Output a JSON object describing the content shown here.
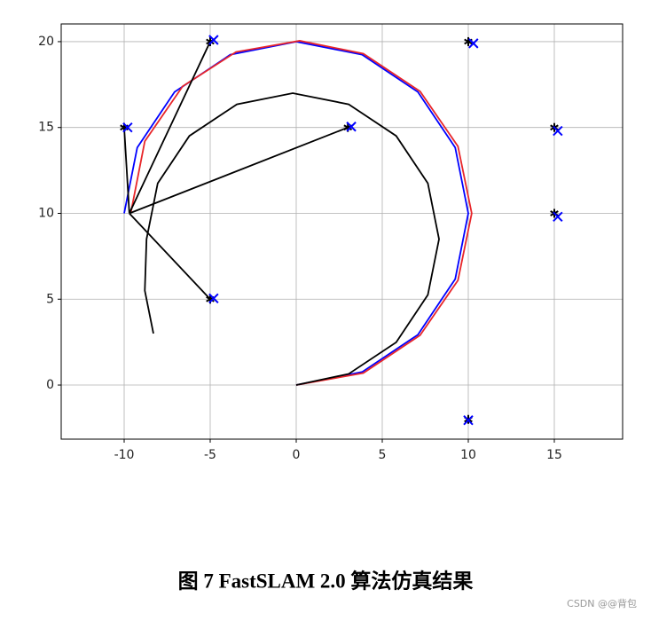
{
  "chart_data": {
    "type": "line",
    "caption": "图 7   FastSLAM 2.0 算法仿真结果",
    "watermark": "CSDN @@背包",
    "xlim": [
      -13.66,
      18.97
    ],
    "ylim": [
      -3.15,
      21.03
    ],
    "xticks": [
      -10,
      -5,
      0,
      5,
      10,
      15
    ],
    "yticks": [
      0,
      5,
      10,
      15,
      20
    ],
    "grid": true,
    "series": [
      {
        "color": "#0000ff",
        "marker": "line",
        "x": [
          0,
          3.83,
          7.07,
          9.24,
          10,
          9.24,
          7.07,
          3.83,
          0,
          -3.83,
          -7.07,
          -9.24,
          -10
        ],
        "y": [
          0,
          0.76,
          2.93,
          6.17,
          10,
          13.83,
          17.07,
          19.24,
          20,
          19.24,
          17.07,
          13.83,
          10
        ]
      },
      {
        "color": "#e8262a",
        "marker": "line",
        "x": [
          0,
          3.9,
          7.2,
          9.4,
          10.2,
          9.4,
          7.2,
          3.9,
          0.2,
          -3.5,
          -6.6,
          -8.8,
          -9.6
        ],
        "y": [
          0,
          0.7,
          2.9,
          6.1,
          10,
          13.9,
          17.1,
          19.3,
          20.05,
          19.4,
          17.4,
          14.2,
          10.1
        ]
      },
      {
        "color": "#000000",
        "marker": "line",
        "x": [
          0,
          3.05,
          5.81,
          7.65,
          8.3,
          7.65,
          5.81,
          3.05,
          -0.2,
          -3.45,
          -6.21,
          -8.05,
          -8.7,
          -8.8,
          -8.3
        ],
        "y": [
          0,
          0.65,
          2.49,
          5.25,
          8.5,
          11.75,
          14.51,
          16.35,
          17,
          16.35,
          14.51,
          11.75,
          8.5,
          5.5,
          3
        ]
      },
      {
        "color": "#000000",
        "marker": "line",
        "x": [
          -9.7,
          -10,
          null,
          -9.7,
          -5,
          null,
          -9.7,
          3,
          null,
          -9.7,
          -5
        ],
        "y": [
          10,
          15,
          null,
          10,
          20,
          null,
          10,
          15,
          null,
          10,
          5
        ]
      },
      {
        "color": "#000000",
        "marker": "star",
        "x": [
          -10,
          -5,
          10,
          15,
          15,
          -5,
          3,
          10
        ],
        "y": [
          15,
          20,
          20,
          15,
          10,
          5,
          15,
          -2
        ]
      },
      {
        "color": "#0000ff",
        "marker": "x",
        "x": [
          -9.8,
          -4.8,
          10.3,
          15.2,
          15.2,
          -4.8,
          3.2,
          10
        ],
        "y": [
          15,
          20.1,
          19.9,
          14.8,
          9.8,
          5.05,
          15.05,
          -2.05
        ]
      }
    ]
  }
}
